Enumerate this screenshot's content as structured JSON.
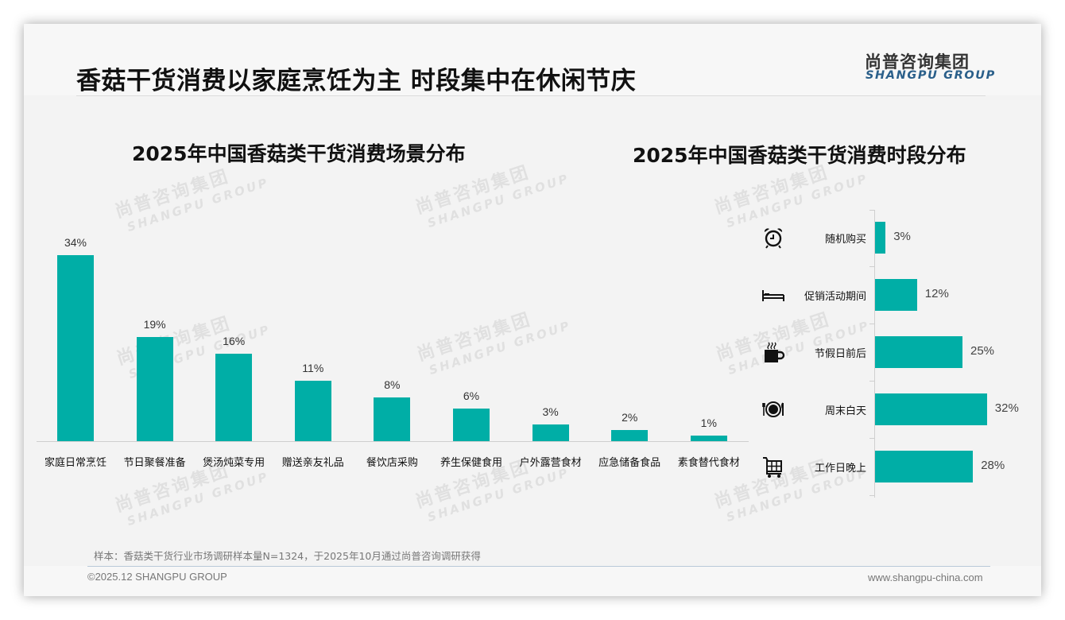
{
  "header": {
    "title": "香菇干货消费以家庭烹饪为主 时段集中在休闲节庆",
    "logo_cn": "尚普咨询集团",
    "logo_en": "SHANGPU GROUP"
  },
  "watermark": {
    "cn": "尚普咨询集团",
    "en": "SHANGPU GROUP"
  },
  "colors": {
    "bar": "#00aea6",
    "logo_en": "#2a5f8a",
    "background": "#f3f3f3"
  },
  "chart_data": [
    {
      "type": "bar",
      "title": "2025年中国香菇类干货消费场景分布",
      "categories": [
        "家庭日常烹饪",
        "节日聚餐准备",
        "煲汤炖菜专用",
        "赠送亲友礼品",
        "餐饮店采购",
        "养生保健食用",
        "户外露营食材",
        "应急储备食品",
        "素食替代食材"
      ],
      "values": [
        34,
        19,
        16,
        11,
        8,
        6,
        3,
        2,
        1
      ],
      "labels": [
        "34%",
        "19%",
        "16%",
        "11%",
        "8%",
        "6%",
        "3%",
        "2%",
        "1%"
      ],
      "unit": "%",
      "xlabel": "",
      "ylabel": "",
      "grid": false,
      "legend": "none",
      "orientation": "vertical"
    },
    {
      "type": "bar",
      "title": "2025年中国香菇类干货消费时段分布",
      "categories": [
        "随机购买",
        "促销活动期间",
        "节假日前后",
        "周末白天",
        "工作日晚上"
      ],
      "values": [
        3,
        12,
        25,
        32,
        28
      ],
      "labels": [
        "3%",
        "12%",
        "25%",
        "32%",
        "28%"
      ],
      "icons": [
        "alarm-clock-icon",
        "bed-icon",
        "coffee-cup-icon",
        "plate-cutlery-icon",
        "shopping-cart-icon"
      ],
      "unit": "%",
      "xlabel": "",
      "ylabel": "",
      "grid": false,
      "legend": "none",
      "orientation": "horizontal"
    }
  ],
  "footer": {
    "note": "样本：香菇类干货行业市场调研样本量N=1324，于2025年10月通过尚普咨询调研获得",
    "copyright": "©2025.12 SHANGPU GROUP",
    "website": "www.shangpu-china.com"
  }
}
